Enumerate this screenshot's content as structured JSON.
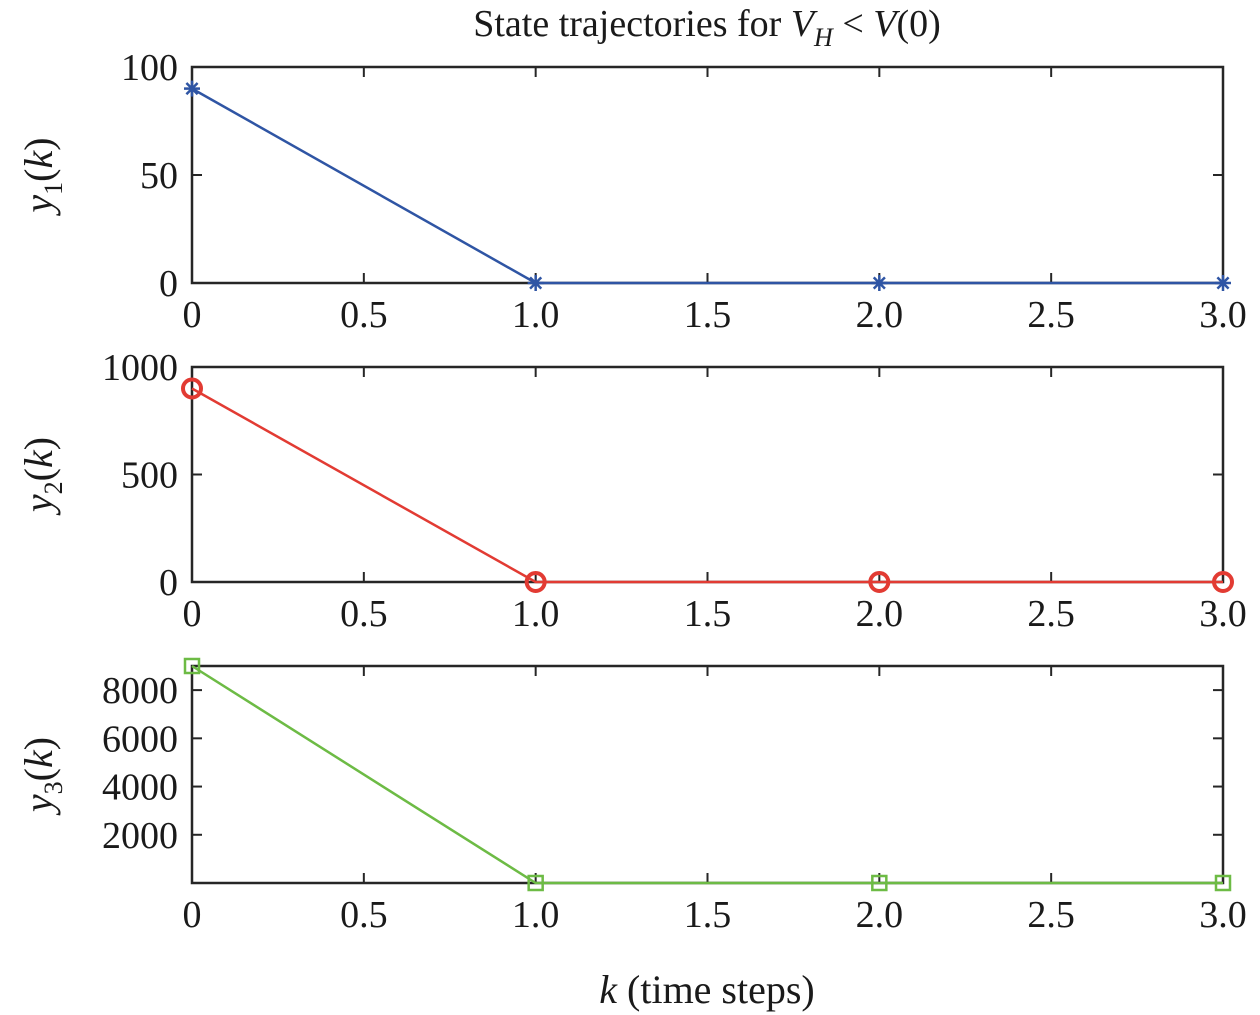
{
  "title": {
    "prefix": "State trajectories for ",
    "V": "V",
    "H": "H",
    "op": " < ",
    "rhs_V": "V",
    "rhs_arg": "(0)"
  },
  "xlabel": {
    "var": "k",
    "text": " (time steps)"
  },
  "colors": {
    "y1": "#2f55a4",
    "y2": "#e23b33",
    "y3": "#6dbb45",
    "axes": "#262626"
  },
  "chart_data": [
    {
      "type": "line",
      "marker": "asterisk",
      "ylabel": {
        "var": "y",
        "sub": "1",
        "arg": "(",
        "k": "k",
        "close": ")"
      },
      "x": [
        0,
        1,
        2,
        3
      ],
      "values": [
        90,
        0,
        0,
        0
      ],
      "xlim": [
        0,
        3
      ],
      "ylim": [
        0,
        100
      ],
      "xticks": [
        0,
        0.5,
        1.0,
        1.5,
        2.0,
        2.5,
        3.0
      ],
      "xticklabels": [
        "0",
        "0.5",
        "1.0",
        "1.5",
        "2.0",
        "2.5",
        "3.0"
      ],
      "yticks": [
        0,
        50,
        100
      ],
      "yticklabels": [
        "0",
        "50",
        "100"
      ],
      "color": "#2f55a4"
    },
    {
      "type": "line",
      "marker": "circle",
      "ylabel": {
        "var": "y",
        "sub": "2",
        "arg": "(",
        "k": "k",
        "close": ")"
      },
      "x": [
        0,
        1,
        2,
        3
      ],
      "values": [
        900,
        0,
        0,
        0
      ],
      "xlim": [
        0,
        3
      ],
      "ylim": [
        0,
        1000
      ],
      "xticks": [
        0,
        0.5,
        1.0,
        1.5,
        2.0,
        2.5,
        3.0
      ],
      "xticklabels": [
        "0",
        "0.5",
        "1.0",
        "1.5",
        "2.0",
        "2.5",
        "3.0"
      ],
      "yticks": [
        0,
        500,
        1000
      ],
      "yticklabels": [
        "0",
        "500",
        "1000"
      ],
      "color": "#e23b33"
    },
    {
      "type": "line",
      "marker": "square",
      "ylabel": {
        "var": "y",
        "sub": "3",
        "arg": "(",
        "k": "k",
        "close": ")"
      },
      "x": [
        0,
        1,
        2,
        3
      ],
      "values": [
        9000,
        0,
        0,
        0
      ],
      "xlim": [
        0,
        3
      ],
      "ylim": [
        0,
        9000
      ],
      "xticks": [
        0,
        0.5,
        1.0,
        1.5,
        2.0,
        2.5,
        3.0
      ],
      "xticklabels": [
        "0",
        "0.5",
        "1.0",
        "1.5",
        "2.0",
        "2.5",
        "3.0"
      ],
      "yticks": [
        2000,
        4000,
        6000,
        8000
      ],
      "yticklabels": [
        "2000",
        "4000",
        "6000",
        "8000"
      ],
      "color": "#6dbb45"
    }
  ]
}
